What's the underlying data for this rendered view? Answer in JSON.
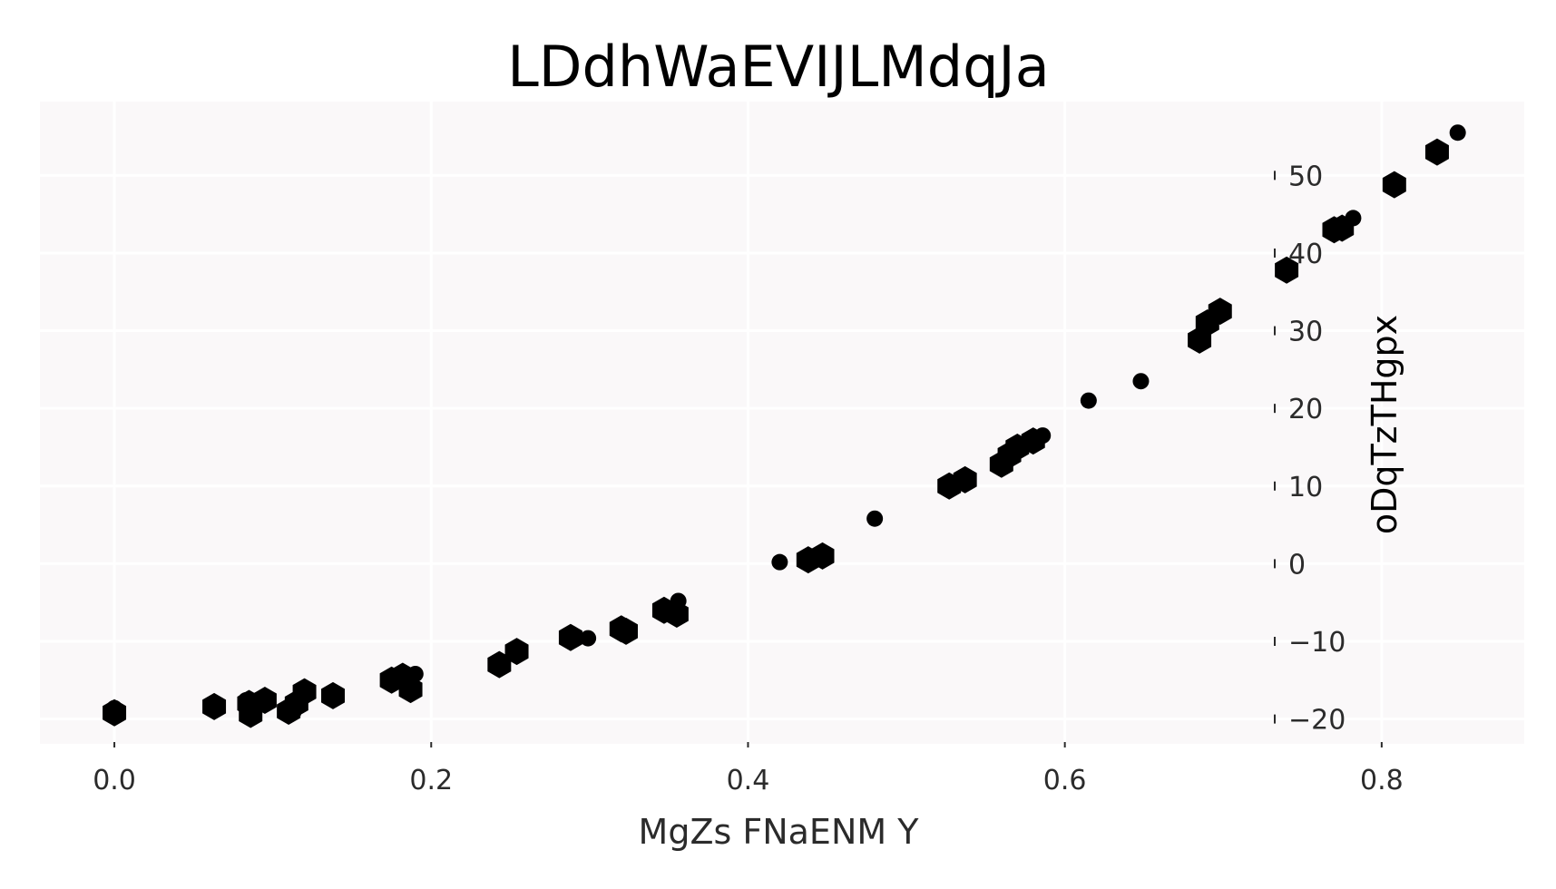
{
  "chart_data": {
    "type": "scatter",
    "title": "LDdhWaEVIJLMdqJa",
    "xlabel": "MgZs FNaENM Y",
    "ylabel": "oDqTzTHgpx",
    "xlim": [
      -0.047,
      0.89
    ],
    "ylim": [
      -23.2,
      59.5
    ],
    "x_ticks": [
      0.0,
      0.2,
      0.4,
      0.6,
      0.8
    ],
    "x_tick_labels": [
      "0.0",
      "0.2",
      "0.4",
      "0.6",
      "0.8"
    ],
    "y_ticks": [
      -20,
      -10,
      0,
      10,
      20,
      30,
      40,
      50
    ],
    "y_tick_labels": [
      "−20",
      "−10",
      "0",
      "10",
      "20",
      "30",
      "40",
      "50"
    ],
    "grid": true,
    "background_color": "#faf8f9",
    "grid_color": "#ffffff",
    "marker_color": "#000000",
    "series": [
      {
        "marker": "hexagon",
        "points": [
          [
            0.0,
            -19.2
          ],
          [
            0.063,
            -18.4
          ],
          [
            0.085,
            -18.0
          ],
          [
            0.086,
            -19.4
          ],
          [
            0.095,
            -17.6
          ],
          [
            0.11,
            -19.0
          ],
          [
            0.115,
            -18.0
          ],
          [
            0.12,
            -16.5
          ],
          [
            0.138,
            -17.0
          ],
          [
            0.175,
            -15.0
          ],
          [
            0.182,
            -14.5
          ],
          [
            0.187,
            -16.2
          ],
          [
            0.243,
            -13.0
          ],
          [
            0.254,
            -11.3
          ],
          [
            0.288,
            -9.5
          ],
          [
            0.32,
            -8.4
          ],
          [
            0.323,
            -8.7
          ],
          [
            0.347,
            -6.0
          ],
          [
            0.355,
            -6.5
          ],
          [
            0.438,
            0.5
          ],
          [
            0.447,
            1.0
          ],
          [
            0.527,
            10.0
          ],
          [
            0.537,
            10.8
          ],
          [
            0.56,
            12.8
          ],
          [
            0.565,
            14.0
          ],
          [
            0.57,
            15.0
          ],
          [
            0.58,
            15.8
          ],
          [
            0.685,
            28.8
          ],
          [
            0.69,
            31.0
          ],
          [
            0.698,
            32.5
          ],
          [
            0.74,
            37.8
          ],
          [
            0.77,
            43.0
          ],
          [
            0.775,
            43.2
          ],
          [
            0.808,
            48.8
          ],
          [
            0.835,
            53.0
          ]
        ]
      },
      {
        "marker": "circle",
        "points": [
          [
            0.0,
            -18.6
          ],
          [
            0.083,
            -17.6
          ],
          [
            0.113,
            -19.1
          ],
          [
            0.19,
            -14.2
          ],
          [
            0.299,
            -9.6
          ],
          [
            0.356,
            -4.8
          ],
          [
            0.42,
            0.2
          ],
          [
            0.48,
            5.8
          ],
          [
            0.586,
            16.5
          ],
          [
            0.615,
            21.0
          ],
          [
            0.648,
            23.5
          ],
          [
            0.782,
            44.5
          ],
          [
            0.848,
            55.5
          ]
        ]
      }
    ]
  }
}
